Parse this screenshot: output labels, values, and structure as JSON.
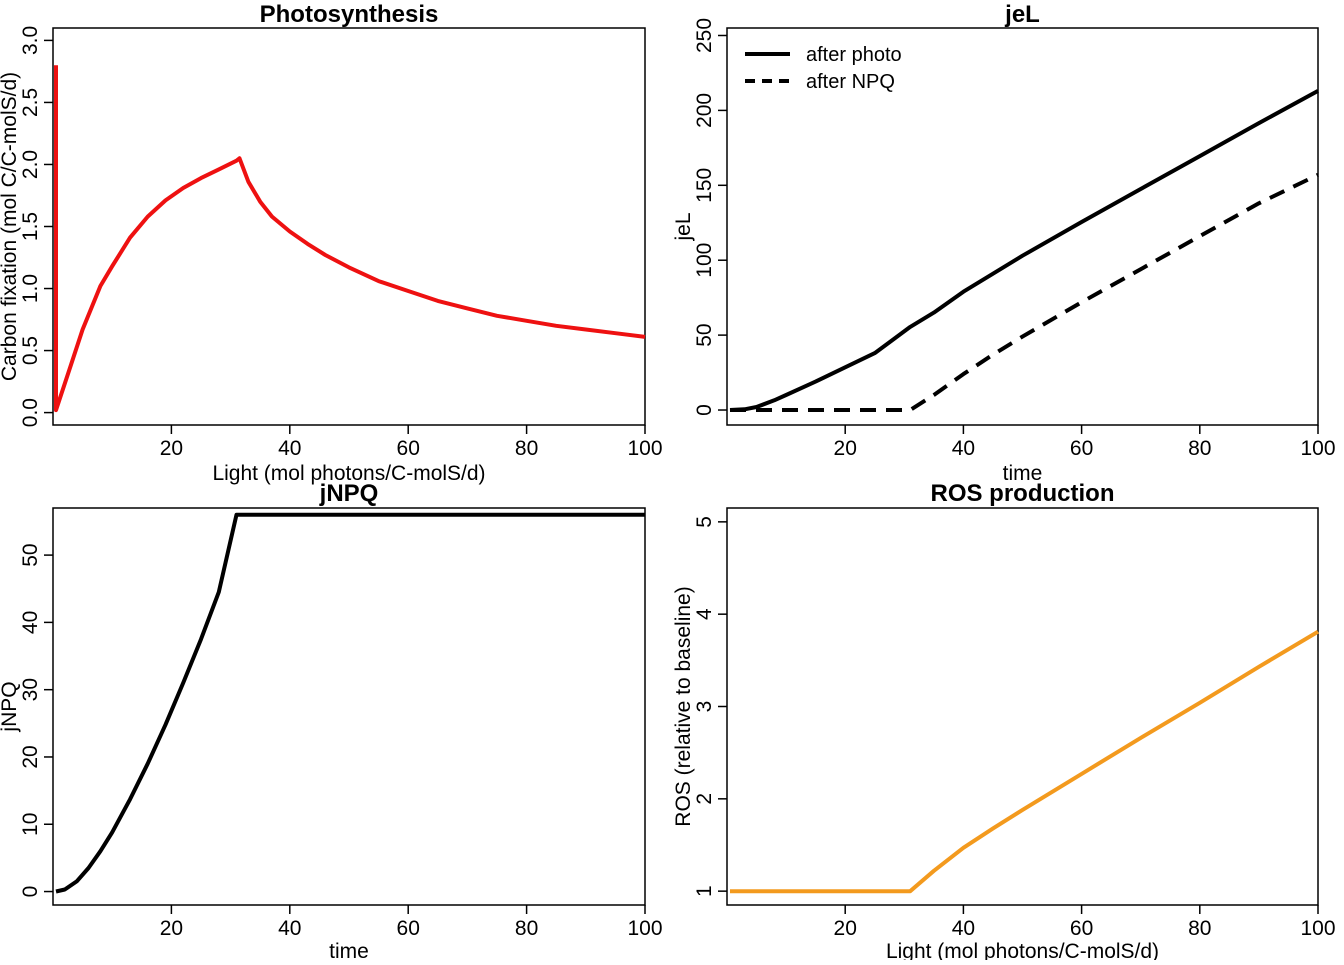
{
  "chart_data": [
    {
      "id": "photosynthesis",
      "type": "line",
      "title": "Photosynthesis",
      "xlabel": "Light (mol photons/C-molS/d)",
      "ylabel": "Carbon fixation (mol C/C-molS/d)",
      "xlim": [
        0,
        100
      ],
      "ylim": [
        -0.1,
        3.1
      ],
      "xticks": [
        20,
        40,
        60,
        80,
        100
      ],
      "yticks": [
        0.0,
        0.5,
        1.0,
        1.5,
        2.0,
        2.5,
        3.0
      ],
      "xtick_labels": [
        "20",
        "40",
        "60",
        "80",
        "100"
      ],
      "ytick_labels": [
        "0.0",
        "0.5",
        "1.0",
        "1.5",
        "2.0",
        "2.5",
        "3.0"
      ],
      "grid": false,
      "series": [
        {
          "color": "#EE1111",
          "dash": "solid",
          "x": [
            0.5,
            0.5,
            0.5,
            3,
            5,
            8,
            10,
            13,
            16,
            19,
            22,
            25,
            28,
            31,
            31.5,
            33,
            35,
            37,
            40,
            43,
            46,
            50,
            55,
            60,
            65,
            70,
            75,
            80,
            85,
            90,
            95,
            100
          ],
          "y": [
            2.8,
            0.55,
            0.02,
            0.38,
            0.67,
            1.02,
            1.18,
            1.41,
            1.58,
            1.71,
            1.81,
            1.89,
            1.96,
            2.03,
            2.05,
            1.86,
            1.7,
            1.58,
            1.46,
            1.36,
            1.27,
            1.17,
            1.06,
            0.98,
            0.9,
            0.84,
            0.78,
            0.74,
            0.7,
            0.67,
            0.64,
            0.61
          ]
        }
      ]
    },
    {
      "id": "jel",
      "type": "line",
      "title": "jeL",
      "xlabel": "time",
      "ylabel": "jeL",
      "xlim": [
        0,
        100
      ],
      "ylim": [
        -10,
        255
      ],
      "xticks": [
        20,
        40,
        60,
        80,
        100
      ],
      "yticks": [
        0,
        50,
        100,
        150,
        200,
        250
      ],
      "xtick_labels": [
        "20",
        "40",
        "60",
        "80",
        "100"
      ],
      "ytick_labels": [
        "0",
        "50",
        "100",
        "150",
        "200",
        "250"
      ],
      "grid": false,
      "legend": {
        "position": "top-left",
        "entries": [
          "after photo",
          "after NPQ"
        ]
      },
      "series": [
        {
          "name": "after photo",
          "color": "#000000",
          "dash": "solid",
          "x": [
            0.5,
            3,
            5,
            8,
            10,
            15,
            20,
            25,
            31,
            35,
            40,
            45,
            50,
            60,
            70,
            80,
            90,
            100
          ],
          "y": [
            0,
            0.5,
            2,
            6.5,
            10,
            19,
            28.5,
            38,
            55.5,
            65,
            79,
            91,
            103,
            125.5,
            147.5,
            169.5,
            191.5,
            213
          ]
        },
        {
          "name": "after NPQ",
          "color": "#000000",
          "dash": "dashed",
          "x": [
            0.5,
            10,
            20,
            31,
            35,
            40,
            45,
            50,
            60,
            70,
            80,
            90,
            100
          ],
          "y": [
            0,
            0,
            0,
            0,
            10,
            24,
            37,
            49,
            72,
            94,
            116,
            138,
            157
          ]
        }
      ]
    },
    {
      "id": "jnpq",
      "type": "line",
      "title": "jNPQ",
      "xlabel": "time",
      "ylabel": "jNPQ",
      "xlim": [
        0,
        100
      ],
      "ylim": [
        -2,
        57
      ],
      "xticks": [
        20,
        40,
        60,
        80,
        100
      ],
      "yticks": [
        0,
        10,
        20,
        30,
        40,
        50
      ],
      "xtick_labels": [
        "20",
        "40",
        "60",
        "80",
        "100"
      ],
      "ytick_labels": [
        "0",
        "10",
        "20",
        "30",
        "40",
        "50"
      ],
      "grid": false,
      "series": [
        {
          "color": "#000000",
          "dash": "solid",
          "x": [
            0.5,
            2,
            4,
            6,
            8,
            10,
            13,
            16,
            19,
            22,
            25,
            28,
            31,
            35,
            40,
            50,
            60,
            70,
            80,
            90,
            100
          ],
          "y": [
            0,
            0.3,
            1.5,
            3.5,
            6,
            8.8,
            13.7,
            19,
            24.8,
            31,
            37.5,
            44.5,
            56,
            56,
            56,
            56,
            56,
            56,
            56,
            56,
            56
          ]
        }
      ]
    },
    {
      "id": "ros",
      "type": "line",
      "title": "ROS production",
      "xlabel": "Light (mol photons/C-molS/d)",
      "ylabel": "ROS (relative to baseline)",
      "xlim": [
        0,
        100
      ],
      "ylim": [
        0.85,
        5.15
      ],
      "xticks": [
        20,
        40,
        60,
        80,
        100
      ],
      "yticks": [
        1,
        2,
        3,
        4,
        5
      ],
      "xtick_labels": [
        "20",
        "40",
        "60",
        "80",
        "100"
      ],
      "ytick_labels": [
        "1",
        "2",
        "3",
        "4",
        "5"
      ],
      "grid": false,
      "series": [
        {
          "color": "#F39A1E",
          "dash": "solid",
          "x": [
            0.5,
            10,
            20,
            31,
            35,
            40,
            45,
            50,
            60,
            70,
            80,
            90,
            100
          ],
          "y": [
            1,
            1,
            1,
            1,
            1.22,
            1.47,
            1.68,
            1.88,
            2.27,
            2.66,
            3.04,
            3.43,
            3.81
          ]
        }
      ]
    }
  ]
}
